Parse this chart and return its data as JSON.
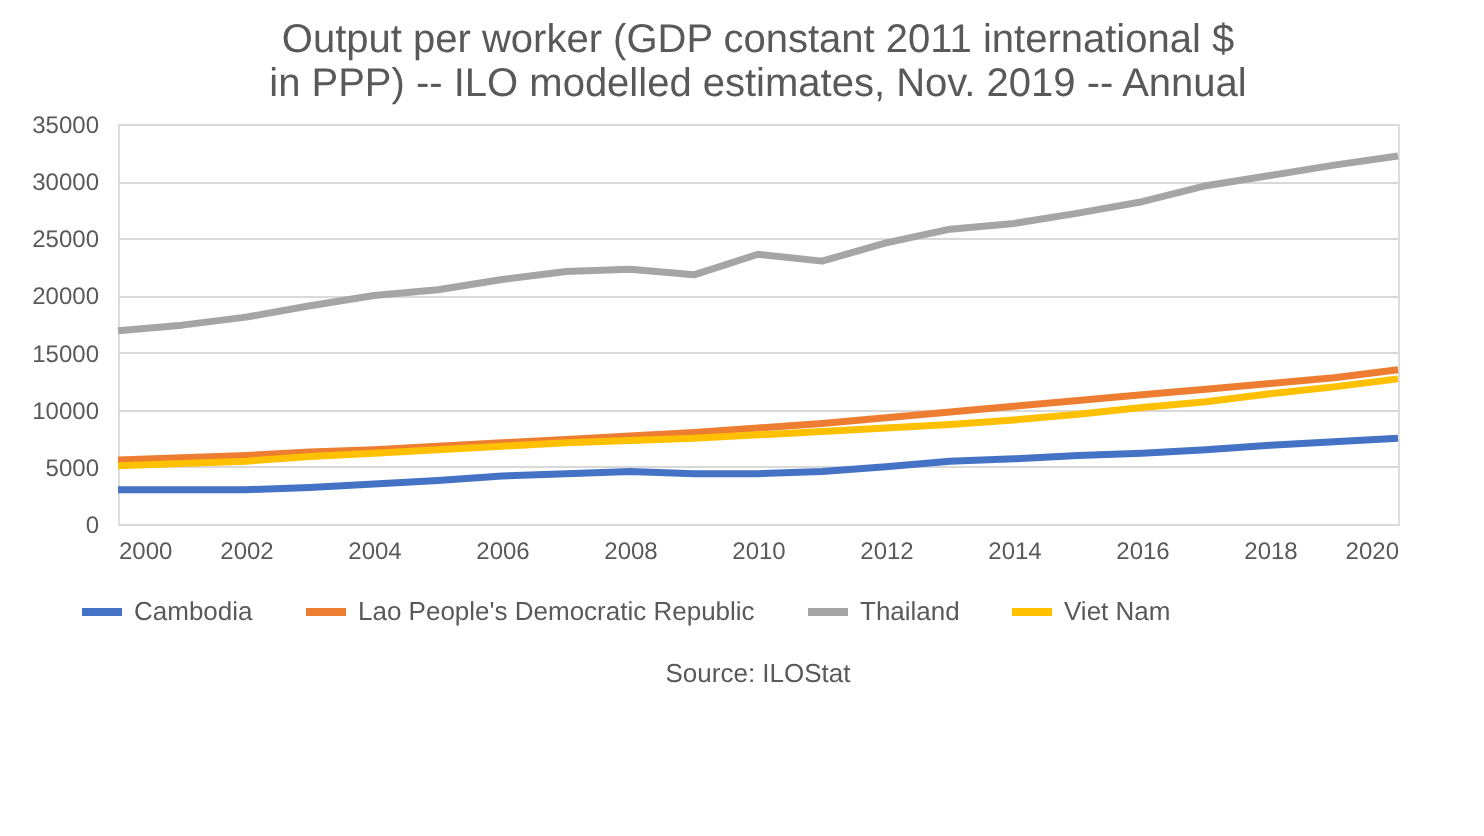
{
  "chart_data": {
    "type": "line",
    "title": [
      "Output per worker (GDP constant 2011 international $",
      "in PPP) -- ILO modelled estimates, Nov. 2019 -- Annual"
    ],
    "x": [
      2000,
      2001,
      2002,
      2003,
      2004,
      2005,
      2006,
      2007,
      2008,
      2009,
      2010,
      2011,
      2012,
      2013,
      2014,
      2015,
      2016,
      2017,
      2018,
      2019,
      2020
    ],
    "series": [
      {
        "name": "Cambodia",
        "color": "#4472c4",
        "values": [
          3000,
          3000,
          3000,
          3200,
          3500,
          3800,
          4200,
          4400,
          4600,
          4400,
          4400,
          4600,
          5000,
          5500,
          5700,
          6000,
          6200,
          6500,
          6900,
          7200,
          7500
        ]
      },
      {
        "name": "Lao People's Democratic Republic",
        "color": "#ed7d31",
        "values": [
          5600,
          5800,
          6000,
          6300,
          6500,
          6800,
          7100,
          7400,
          7700,
          8000,
          8400,
          8800,
          9300,
          9800,
          10300,
          10800,
          11300,
          11800,
          12300,
          12800,
          13500
        ]
      },
      {
        "name": "Thailand",
        "color": "#a5a5a5",
        "values": [
          16900,
          17400,
          18100,
          19100,
          20000,
          20500,
          21400,
          22100,
          22300,
          21800,
          23600,
          23000,
          24600,
          25800,
          26300,
          27200,
          28200,
          29600,
          30500,
          31400,
          32200
        ]
      },
      {
        "name": "Viet Nam",
        "color": "#ffc000",
        "values": [
          5100,
          5300,
          5500,
          5900,
          6200,
          6500,
          6800,
          7100,
          7300,
          7500,
          7800,
          8100,
          8400,
          8700,
          9100,
          9600,
          10200,
          10700,
          11400,
          12000,
          12700
        ]
      }
    ],
    "xlim": [
      2000,
      2020
    ],
    "xticks": [
      2000,
      2002,
      2004,
      2006,
      2008,
      2010,
      2012,
      2014,
      2016,
      2018,
      2020
    ],
    "ylim": [
      0,
      35000
    ],
    "yticks": [
      0,
      5000,
      10000,
      15000,
      20000,
      25000,
      30000,
      35000
    ],
    "grid": "y",
    "legend": "bottom",
    "marker": "none",
    "line_style": "solid",
    "annotations": [
      "Source: ILOStat"
    ]
  }
}
